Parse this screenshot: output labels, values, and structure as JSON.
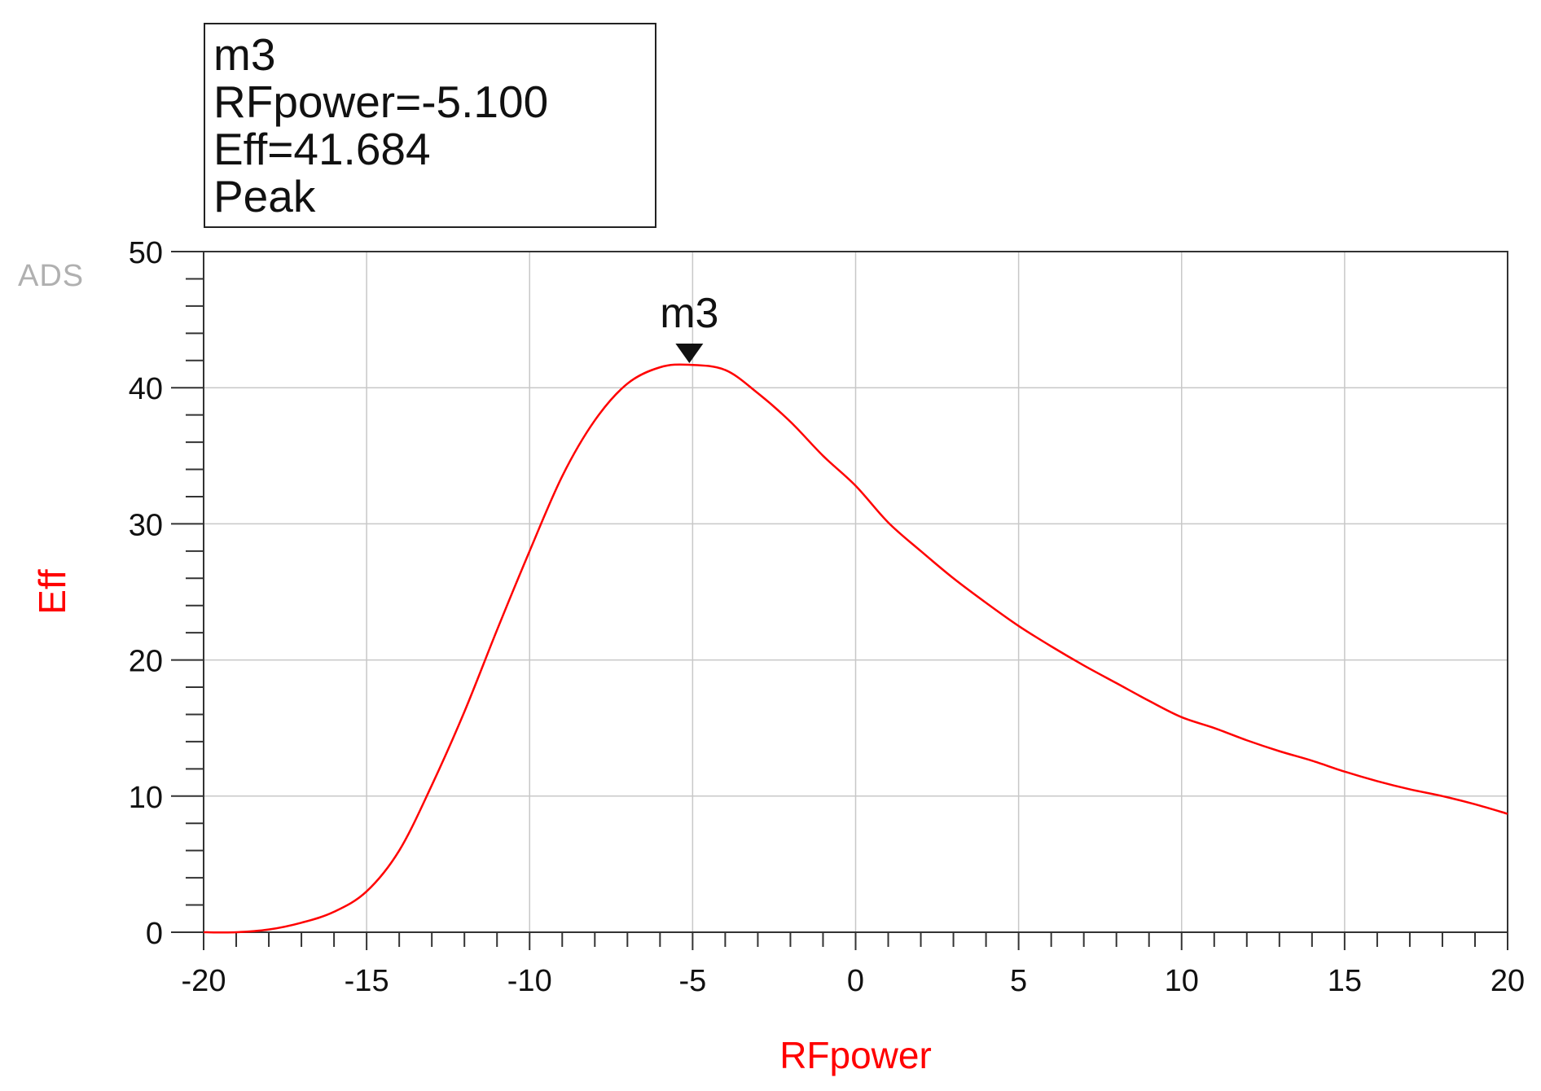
{
  "marker_readout": {
    "name": "m3",
    "x_readout": "RFpower=-5.100",
    "y_readout": "Eff=41.684",
    "mode": "Peak"
  },
  "watermark": "ADS",
  "colors": {
    "trace": "#ff0000",
    "grid": "#c8c8c8",
    "axis": "#333333",
    "ylabel": "#ff0000",
    "xlabel": "#ff0000"
  },
  "chart_data": {
    "type": "line",
    "xlabel": "RFpower",
    "ylabel": "Eff",
    "xlim": [
      -20,
      20
    ],
    "ylim": [
      0,
      50
    ],
    "xticks": [
      -20,
      -15,
      -10,
      -5,
      0,
      5,
      10,
      15,
      20
    ],
    "yticks": [
      0,
      10,
      20,
      30,
      40,
      50
    ],
    "grid": true,
    "series": [
      {
        "x": [
          -20,
          -19,
          -18,
          -17,
          -16,
          -15,
          -14,
          -13,
          -12,
          -11,
          -10,
          -9,
          -8,
          -7,
          -6,
          -5.1,
          -4,
          -3,
          -2,
          -1,
          0,
          1,
          2,
          3,
          4,
          5,
          6,
          7,
          8,
          9,
          10,
          11,
          12,
          13,
          14,
          15,
          16,
          17,
          18,
          19,
          20
        ],
        "y": [
          0,
          0,
          0.2,
          0.7,
          1.5,
          3.0,
          6.0,
          10.8,
          16.2,
          22.2,
          28.0,
          33.5,
          37.6,
          40.3,
          41.5,
          41.684,
          41.3,
          39.6,
          37.5,
          35.0,
          32.8,
          30.1,
          28.0,
          26.0,
          24.2,
          22.5,
          21.0,
          19.6,
          18.3,
          17.0,
          15.8,
          15.0,
          14.1,
          13.3,
          12.6,
          11.8,
          11.1,
          10.5,
          10.0,
          9.4,
          8.7
        ]
      }
    ],
    "marker": {
      "name": "m3",
      "x": -5.1,
      "y": 41.684
    }
  }
}
